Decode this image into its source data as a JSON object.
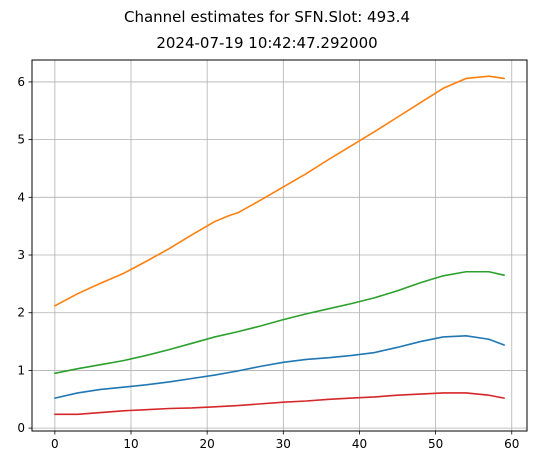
{
  "chart_data": {
    "type": "line",
    "title": "Channel estimates for SFN.Slot: 493.4",
    "subtitle": "2024-07-19 10:42:47.292000",
    "xlabel": "",
    "ylabel": "",
    "xlim": [
      -3,
      62
    ],
    "ylim": [
      -0.05,
      6.38
    ],
    "xticks": [
      0,
      10,
      20,
      30,
      40,
      50,
      60
    ],
    "yticks": [
      0,
      1,
      2,
      3,
      4,
      5,
      6
    ],
    "grid": true,
    "colors": [
      "#1f77b4",
      "#ff7f0e",
      "#2ca02c",
      "#d62728"
    ],
    "series": [
      {
        "color": "#1f77b4",
        "x": [
          0,
          3,
          6,
          9,
          12,
          15,
          18,
          21,
          24,
          27,
          30,
          33,
          36,
          39,
          42,
          45,
          48,
          51,
          54,
          57,
          59
        ],
        "values": [
          0.52,
          0.61,
          0.67,
          0.71,
          0.75,
          0.8,
          0.86,
          0.92,
          0.99,
          1.07,
          1.14,
          1.19,
          1.22,
          1.26,
          1.31,
          1.4,
          1.5,
          1.58,
          1.6,
          1.54,
          1.44
        ]
      },
      {
        "color": "#ff7f0e",
        "x": [
          0,
          3,
          6,
          9,
          12,
          15,
          18,
          21,
          23,
          24,
          27,
          30,
          33,
          36,
          39,
          42,
          45,
          48,
          51,
          54,
          57,
          59
        ],
        "values": [
          2.12,
          2.33,
          2.51,
          2.68,
          2.89,
          3.11,
          3.35,
          3.58,
          3.69,
          3.73,
          3.95,
          4.18,
          4.41,
          4.66,
          4.9,
          5.14,
          5.39,
          5.64,
          5.89,
          6.06,
          6.1,
          6.06
        ]
      },
      {
        "color": "#2ca02c",
        "x": [
          0,
          3,
          6,
          9,
          12,
          15,
          18,
          21,
          24,
          27,
          30,
          33,
          36,
          39,
          42,
          45,
          48,
          51,
          54,
          57,
          59
        ],
        "values": [
          0.95,
          1.03,
          1.1,
          1.17,
          1.26,
          1.36,
          1.47,
          1.58,
          1.67,
          1.77,
          1.88,
          1.98,
          2.07,
          2.16,
          2.26,
          2.38,
          2.52,
          2.64,
          2.71,
          2.71,
          2.65
        ]
      },
      {
        "color": "#d62728",
        "x": [
          0,
          3,
          6,
          9,
          12,
          15,
          18,
          21,
          24,
          27,
          30,
          33,
          36,
          39,
          42,
          45,
          48,
          51,
          54,
          57,
          59
        ],
        "values": [
          0.24,
          0.24,
          0.27,
          0.3,
          0.32,
          0.34,
          0.35,
          0.37,
          0.39,
          0.42,
          0.45,
          0.47,
          0.5,
          0.52,
          0.54,
          0.57,
          0.59,
          0.61,
          0.61,
          0.57,
          0.52
        ]
      }
    ]
  }
}
